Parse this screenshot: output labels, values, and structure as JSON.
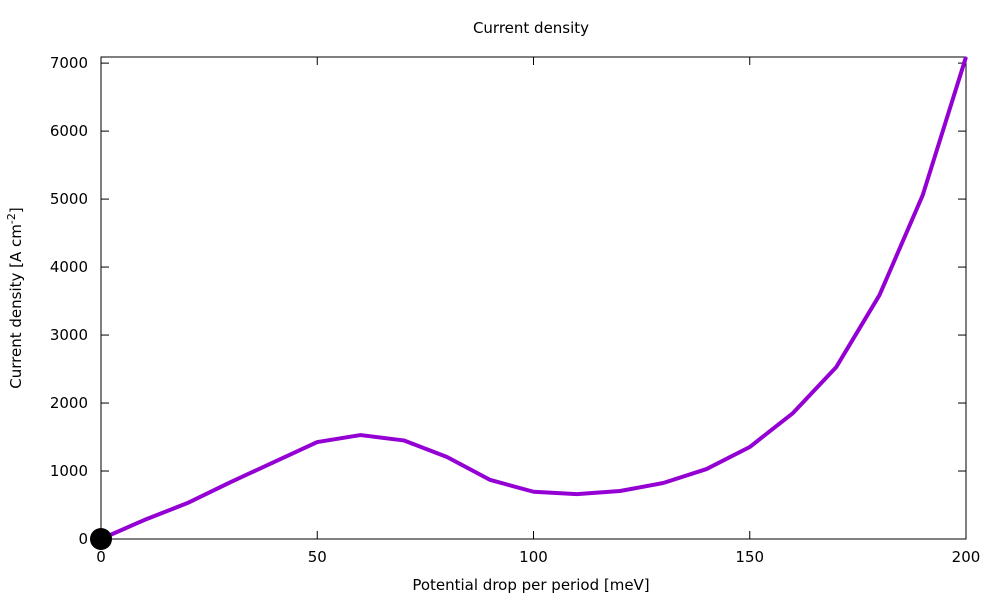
{
  "chart_data": {
    "type": "line",
    "title": "Current density",
    "xlabel": "Potential drop per period [meV]",
    "ylabel": "Current density [A cm",
    "ylabel_sup": "-2",
    "ylabel_end": "]",
    "xlim": [
      0,
      200
    ],
    "ylim": [
      0,
      7090
    ],
    "xticks": [
      0,
      50,
      100,
      150,
      200
    ],
    "yticks": [
      0,
      1000,
      2000,
      3000,
      4000,
      5000,
      6000,
      7000
    ],
    "grid": false,
    "line_color": "#9400d3",
    "marker_color": "#000000",
    "series": [
      {
        "x": [
          0,
          10,
          20,
          30,
          40,
          50,
          60,
          70,
          80,
          90,
          100,
          110,
          120,
          130,
          140,
          150,
          160,
          170,
          180,
          190,
          200
        ],
        "y": [
          0,
          279,
          529,
          838,
          1132,
          1426,
          1529,
          1450,
          1206,
          868,
          695,
          660,
          706,
          824,
          1029,
          1353,
          1853,
          2529,
          3588,
          5059,
          7090
        ]
      }
    ],
    "markers": [
      {
        "x": 0,
        "y": 0
      }
    ]
  }
}
